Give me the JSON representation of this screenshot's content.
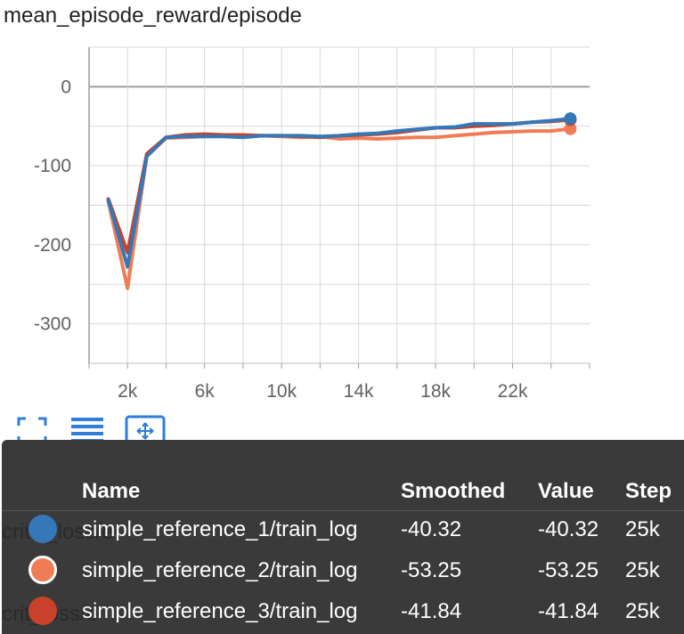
{
  "chart_data": {
    "type": "line",
    "title": "mean_episode_reward/episode",
    "xlabel": "",
    "ylabel": "",
    "xlim": [
      0,
      26000
    ],
    "ylim": [
      -350,
      50
    ],
    "x_ticks": [
      2000,
      6000,
      10000,
      14000,
      18000,
      22000
    ],
    "x_tick_labels": [
      "2k",
      "6k",
      "10k",
      "14k",
      "18k",
      "22k"
    ],
    "y_ticks": [
      0,
      -100,
      -200,
      -300
    ],
    "y_tick_labels": [
      "0",
      "-100",
      "-200",
      "-300"
    ],
    "grid": true,
    "series": [
      {
        "name": "simple_reference_2/train_log",
        "color": "#f07c56",
        "x": [
          1000,
          2000,
          3000,
          4000,
          5000,
          6000,
          7000,
          8000,
          9000,
          10000,
          11000,
          12000,
          13000,
          14000,
          15000,
          16000,
          17000,
          18000,
          19000,
          20000,
          21000,
          22000,
          23000,
          24000,
          25000
        ],
        "values": [
          -145,
          -255,
          -88,
          -65,
          -64,
          -63,
          -62,
          -63,
          -62,
          -63,
          -64,
          -63,
          -66,
          -65,
          -66,
          -65,
          -64,
          -64,
          -62,
          -60,
          -58,
          -57,
          -56,
          -56,
          -53.25
        ]
      },
      {
        "name": "simple_reference_3/train_log",
        "color": "#c9412a",
        "x": [
          1000,
          2000,
          3000,
          4000,
          5000,
          6000,
          7000,
          8000,
          9000,
          10000,
          11000,
          12000,
          13000,
          14000,
          15000,
          16000,
          17000,
          18000,
          19000,
          20000,
          21000,
          22000,
          23000,
          24000,
          25000
        ],
        "values": [
          -142,
          -210,
          -85,
          -64,
          -61,
          -60,
          -61,
          -61,
          -62,
          -62,
          -63,
          -64,
          -62,
          -61,
          -60,
          -58,
          -55,
          -52,
          -52,
          -50,
          -49,
          -47,
          -45,
          -44,
          -41.84
        ]
      },
      {
        "name": "simple_reference_1/train_log",
        "color": "#3478b8",
        "x": [
          1000,
          2000,
          3000,
          4000,
          5000,
          6000,
          7000,
          8000,
          9000,
          10000,
          11000,
          12000,
          13000,
          14000,
          15000,
          16000,
          17000,
          18000,
          19000,
          20000,
          21000,
          22000,
          23000,
          24000,
          25000
        ],
        "values": [
          -143,
          -228,
          -88,
          -64,
          -63,
          -63,
          -63,
          -64,
          -62,
          -62,
          -62,
          -63,
          -62,
          -60,
          -59,
          -56,
          -54,
          -52,
          -51,
          -47,
          -47,
          -47,
          -45,
          -43,
          -40.32
        ]
      }
    ]
  },
  "toolbar": {
    "expand_icon": "fullscreen-icon",
    "data_icon": "list-icon",
    "fit_icon": "fit-domain-icon"
  },
  "tooltip": {
    "headers": {
      "name": "Name",
      "smoothed": "Smoothed",
      "value": "Value",
      "step": "Step"
    },
    "background_ghost_1": "critic_loss/e",
    "background_ghost_2": "crit_loss/e",
    "rows": [
      {
        "color": "#3478b8",
        "name": "simple_reference_1/train_log",
        "smoothed": "-40.32",
        "value": "-40.32",
        "step": "25k"
      },
      {
        "color": "#f07c56",
        "name": "simple_reference_2/train_log",
        "smoothed": "-53.25",
        "value": "-53.25",
        "step": "25k"
      },
      {
        "color": "#c9412a",
        "name": "simple_reference_3/train_log",
        "smoothed": "-41.84",
        "value": "-41.84",
        "step": "25k"
      }
    ]
  }
}
